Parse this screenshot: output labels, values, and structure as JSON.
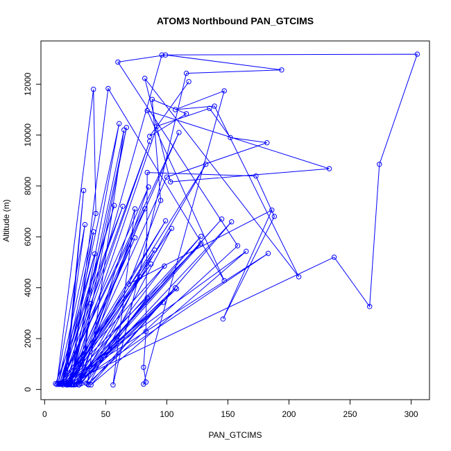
{
  "chart_data": {
    "type": "line",
    "title": "ATOM3 Northbound PAN_GTCIMS",
    "xlabel": "PAN_GTCIMS",
    "ylabel": "Altitude (m)",
    "xlim": [
      -3,
      315
    ],
    "ylim": [
      -400,
      13700
    ],
    "x_ticks": [
      0,
      50,
      100,
      150,
      200,
      250,
      300
    ],
    "y_ticks": [
      0,
      2000,
      4000,
      6000,
      8000,
      10000,
      12000
    ],
    "grid": false,
    "legend": "none",
    "color": "#0000ff",
    "markers": "open-circle",
    "series": [
      {
        "points": [
          [
            9,
            230
          ],
          [
            64,
            7200
          ],
          [
            12,
            200
          ],
          [
            57,
            7230
          ],
          [
            14,
            230
          ],
          [
            40,
            6200
          ],
          [
            20,
            240
          ],
          [
            96,
            13150
          ],
          [
            305,
            13180
          ],
          [
            274,
            8850
          ],
          [
            266,
            3260
          ],
          [
            237,
            5200
          ],
          [
            20,
            250
          ],
          [
            29,
            980
          ],
          [
            67,
            10300
          ],
          [
            22,
            190
          ],
          [
            61,
            10450
          ],
          [
            15,
            180
          ],
          [
            33,
            6480
          ],
          [
            10,
            200
          ],
          [
            40,
            11800
          ],
          [
            42,
            6920
          ],
          [
            11,
            230
          ],
          [
            41,
            5330
          ],
          [
            14,
            240
          ],
          [
            18,
            250
          ],
          [
            32,
            7820
          ],
          [
            17,
            240
          ],
          [
            20,
            190
          ],
          [
            92,
            10350
          ],
          [
            135,
            11050
          ],
          [
            152,
            9900
          ],
          [
            182,
            9700
          ],
          [
            100,
            8350
          ],
          [
            23,
            200
          ],
          [
            82,
            7100
          ],
          [
            13,
            210
          ],
          [
            85,
            7960
          ],
          [
            28,
            180
          ],
          [
            74,
            7100
          ],
          [
            56,
            180
          ],
          [
            116,
            12430
          ],
          [
            194,
            12560
          ],
          [
            99,
            13150
          ],
          [
            60,
            12870
          ],
          [
            158,
            5650
          ],
          [
            35,
            220
          ],
          [
            65,
            10200
          ],
          [
            21,
            260
          ],
          [
            74,
            5960
          ],
          [
            18,
            180
          ],
          [
            128,
            6020
          ],
          [
            25,
            190
          ],
          [
            90,
            5480
          ],
          [
            14,
            210
          ],
          [
            86,
            9750
          ],
          [
            17,
            250
          ],
          [
            87,
            4930
          ],
          [
            12,
            240
          ],
          [
            98,
            4850
          ],
          [
            24,
            180
          ],
          [
            107,
            4000
          ],
          [
            36,
            180
          ],
          [
            104,
            6330
          ],
          [
            17,
            230
          ],
          [
            99,
            6630
          ],
          [
            20,
            200
          ],
          [
            78,
            4430
          ],
          [
            34,
            250
          ],
          [
            84,
            3600
          ],
          [
            30,
            230
          ],
          [
            38,
            3380
          ],
          [
            29,
            250
          ],
          [
            97,
            3420
          ],
          [
            19,
            180
          ],
          [
            108,
            3960
          ],
          [
            26,
            200
          ],
          [
            128,
            5730
          ],
          [
            13,
            220
          ],
          [
            110,
            10100
          ],
          [
            19,
            200
          ],
          [
            132,
            8850
          ],
          [
            28,
            190
          ],
          [
            153,
            6590
          ],
          [
            38,
            180
          ],
          [
            165,
            5430
          ],
          [
            16,
            230
          ],
          [
            183,
            5350
          ],
          [
            24,
            200
          ],
          [
            145,
            6700
          ],
          [
            22,
            180
          ],
          [
            52,
            11830
          ],
          [
            147,
            4280
          ],
          [
            84,
            10960
          ],
          [
            233,
            8680
          ],
          [
            103,
            8160
          ],
          [
            82,
            12230
          ],
          [
            208,
            4430
          ],
          [
            139,
            11140
          ],
          [
            107,
            11000
          ],
          [
            147,
            11740
          ],
          [
            81,
            210
          ],
          [
            83,
            290
          ],
          [
            81,
            870
          ],
          [
            83,
            2280
          ],
          [
            84,
            8530
          ],
          [
            173,
            8390
          ],
          [
            188,
            6800
          ],
          [
            146,
            2770
          ],
          [
            186,
            7050
          ],
          [
            69,
            4150
          ],
          [
            95,
            7430
          ],
          [
            88,
            11400
          ],
          [
            116,
            10840
          ],
          [
            86,
            9950
          ],
          [
            118,
            12100
          ]
        ]
      }
    ]
  }
}
